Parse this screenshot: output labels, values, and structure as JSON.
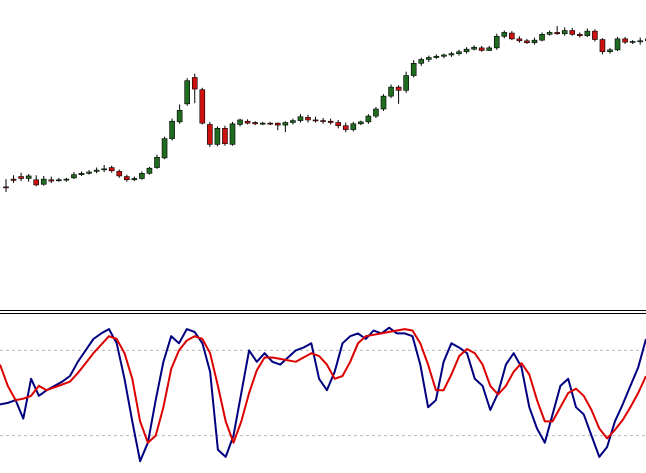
{
  "chart_data": [
    {
      "type": "candlestick",
      "colors": {
        "bull": "#1f6b1f",
        "bear": "#cc1111",
        "wick": "#000000"
      },
      "series": [
        {
          "candles": [
            [
              0.48,
              0.47,
              0.6,
              0.4
            ],
            [
              0.6,
              0.58,
              0.66,
              0.54
            ],
            [
              0.64,
              0.61,
              0.7,
              0.57
            ],
            [
              0.61,
              0.65,
              0.68,
              0.56
            ],
            [
              0.59,
              0.51,
              0.66,
              0.49
            ],
            [
              0.52,
              0.6,
              0.65,
              0.5
            ],
            [
              0.59,
              0.57,
              0.64,
              0.54
            ],
            [
              0.58,
              0.59,
              0.62,
              0.56
            ],
            [
              0.59,
              0.6,
              0.62,
              0.56
            ],
            [
              0.62,
              0.67,
              0.71,
              0.6
            ],
            [
              0.67,
              0.69,
              0.72,
              0.65
            ],
            [
              0.69,
              0.71,
              0.74,
              0.67
            ],
            [
              0.72,
              0.74,
              0.78,
              0.69
            ],
            [
              0.75,
              0.76,
              0.82,
              0.71
            ],
            [
              0.78,
              0.73,
              0.81,
              0.7
            ],
            [
              0.72,
              0.65,
              0.75,
              0.62
            ],
            [
              0.64,
              0.59,
              0.67,
              0.56
            ],
            [
              0.59,
              0.61,
              0.64,
              0.57
            ],
            [
              0.61,
              0.69,
              0.72,
              0.59
            ],
            [
              0.69,
              0.77,
              0.79,
              0.67
            ],
            [
              0.78,
              0.94,
              0.98,
              0.76
            ],
            [
              0.93,
              1.23,
              1.26,
              0.91
            ],
            [
              1.23,
              1.5,
              1.54,
              1.2
            ],
            [
              1.49,
              1.67,
              1.76,
              1.46
            ],
            [
              1.77,
              2.13,
              2.17,
              1.74
            ],
            [
              2.18,
              2.0,
              2.24,
              1.78
            ],
            [
              1.99,
              1.47,
              2.02,
              1.45
            ],
            [
              1.45,
              1.14,
              1.49,
              1.1
            ],
            [
              1.14,
              1.39,
              1.42,
              1.11
            ],
            [
              1.39,
              1.15,
              1.43,
              1.12
            ],
            [
              1.14,
              1.46,
              1.49,
              1.12
            ],
            [
              1.45,
              1.52,
              1.54,
              1.42
            ],
            [
              1.5,
              1.47,
              1.53,
              1.45
            ],
            [
              1.48,
              1.46,
              1.5,
              1.44
            ],
            [
              1.46,
              1.47,
              1.49,
              1.44
            ],
            [
              1.47,
              1.46,
              1.49,
              1.44
            ],
            [
              1.47,
              1.44,
              1.48,
              1.36
            ],
            [
              1.44,
              1.48,
              1.5,
              1.33
            ],
            [
              1.48,
              1.51,
              1.54,
              1.45
            ],
            [
              1.51,
              1.57,
              1.61,
              1.48
            ],
            [
              1.56,
              1.52,
              1.6,
              1.48
            ],
            [
              1.52,
              1.51,
              1.57,
              1.48
            ],
            [
              1.51,
              1.5,
              1.55,
              1.46
            ],
            [
              1.5,
              1.48,
              1.54,
              1.45
            ],
            [
              1.48,
              1.43,
              1.52,
              1.39
            ],
            [
              1.43,
              1.37,
              1.48,
              1.33
            ],
            [
              1.37,
              1.46,
              1.49,
              1.34
            ],
            [
              1.46,
              1.49,
              1.51,
              1.44
            ],
            [
              1.49,
              1.58,
              1.61,
              1.46
            ],
            [
              1.58,
              1.69,
              1.72,
              1.55
            ],
            [
              1.69,
              1.89,
              1.92,
              1.66
            ],
            [
              1.89,
              2.03,
              2.07,
              1.86
            ],
            [
              2.03,
              1.98,
              2.06,
              1.77
            ],
            [
              1.98,
              2.21,
              2.27,
              1.94
            ],
            [
              2.21,
              2.4,
              2.45,
              2.18
            ],
            [
              2.4,
              2.46,
              2.49,
              2.36
            ],
            [
              2.46,
              2.49,
              2.52,
              2.42
            ],
            [
              2.49,
              2.51,
              2.54,
              2.47
            ],
            [
              2.51,
              2.53,
              2.55,
              2.48
            ],
            [
              2.53,
              2.55,
              2.58,
              2.5
            ],
            [
              2.55,
              2.58,
              2.61,
              2.52
            ],
            [
              2.58,
              2.62,
              2.65,
              2.55
            ],
            [
              2.62,
              2.65,
              2.68,
              2.6
            ],
            [
              2.64,
              2.6,
              2.67,
              2.58
            ],
            [
              2.6,
              2.64,
              2.67,
              2.59
            ],
            [
              2.64,
              2.82,
              2.86,
              2.61
            ],
            [
              2.82,
              2.88,
              2.91,
              2.79
            ],
            [
              2.87,
              2.78,
              2.9,
              2.76
            ],
            [
              2.78,
              2.75,
              2.82,
              2.72
            ],
            [
              2.75,
              2.72,
              2.78,
              2.7
            ],
            [
              2.72,
              2.76,
              2.8,
              2.69
            ],
            [
              2.76,
              2.85,
              2.88,
              2.74
            ],
            [
              2.85,
              2.88,
              2.91,
              2.83
            ],
            [
              2.88,
              2.86,
              2.98,
              2.84
            ],
            [
              2.86,
              2.91,
              2.96,
              2.83
            ],
            [
              2.91,
              2.85,
              2.95,
              2.83
            ],
            [
              2.85,
              2.83,
              2.88,
              2.8
            ],
            [
              2.83,
              2.9,
              2.94,
              2.81
            ],
            [
              2.9,
              2.77,
              2.93,
              2.74
            ],
            [
              2.77,
              2.58,
              2.79,
              2.54
            ],
            [
              2.58,
              2.61,
              2.64,
              2.55
            ],
            [
              2.61,
              2.78,
              2.81,
              2.59
            ],
            [
              2.78,
              2.73,
              2.81,
              2.7
            ],
            [
              2.73,
              2.74,
              2.76,
              2.7
            ],
            [
              2.74,
              2.75,
              2.8,
              2.69
            ],
            [
              2.75,
              2.78,
              2.81,
              2.72
            ],
            [
              2.78,
              2.81,
              2.84,
              2.75
            ]
          ]
        }
      ]
    },
    {
      "type": "line",
      "ylim": [
        0,
        100
      ],
      "levels": [
        80,
        20
      ],
      "series": [
        {
          "color": "#000080",
          "values": [
            42,
            43,
            45,
            32,
            60,
            48,
            52,
            55,
            58,
            62,
            72,
            80,
            88,
            92,
            95,
            85,
            60,
            30,
            2,
            15,
            45,
            72,
            90,
            85,
            95,
            93,
            85,
            65,
            10,
            5,
            20,
            50,
            80,
            72,
            78,
            72,
            70,
            75,
            80,
            82,
            85,
            60,
            52,
            65,
            85,
            90,
            92,
            88,
            94,
            92,
            96,
            92,
            92,
            90,
            70,
            40,
            45,
            72,
            85,
            82,
            78,
            60,
            55,
            38,
            50,
            70,
            78,
            68,
            40,
            25,
            15,
            35,
            55,
            60,
            40,
            35,
            20,
            5,
            12,
            30,
            42,
            55,
            68,
            88
          ]
        },
        {
          "color": "#dd0000",
          "values": [
            70,
            55,
            45,
            46,
            48,
            55,
            52,
            54,
            56,
            58,
            64,
            71,
            78,
            84,
            90,
            88,
            78,
            60,
            30,
            15,
            20,
            40,
            67,
            80,
            87,
            90,
            88,
            78,
            55,
            30,
            15,
            30,
            50,
            66,
            75,
            75,
            74,
            73,
            72,
            75,
            78,
            76,
            70,
            60,
            62,
            72,
            85,
            90,
            91,
            92,
            93,
            94,
            95,
            94,
            85,
            70,
            52,
            52,
            63,
            76,
            81,
            78,
            70,
            55,
            49,
            55,
            65,
            71,
            63,
            45,
            30,
            30,
            40,
            50,
            53,
            48,
            38,
            25,
            18,
            24,
            31,
            40,
            50,
            62
          ]
        }
      ]
    }
  ]
}
